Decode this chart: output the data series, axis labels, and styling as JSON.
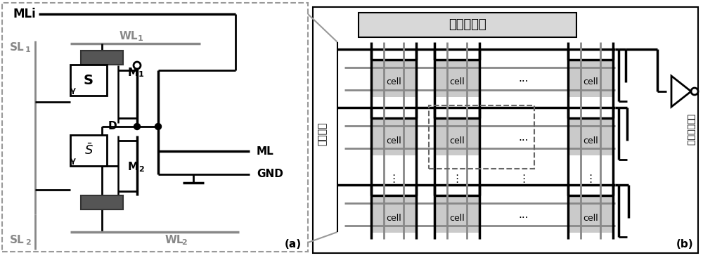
{
  "bg_color": "#ffffff",
  "gray": "#888888",
  "dark_gray": "#555555",
  "black": "#000000",
  "cell_bg": "#c8c8c8",
  "title_bg": "#d8d8d8",
  "panel_a_label": "(a)",
  "panel_b_label": "(b)",
  "title_b": "搜索缓冲区",
  "left_text_b": "字线驱动",
  "right_text_b": "区相比放大路"
}
